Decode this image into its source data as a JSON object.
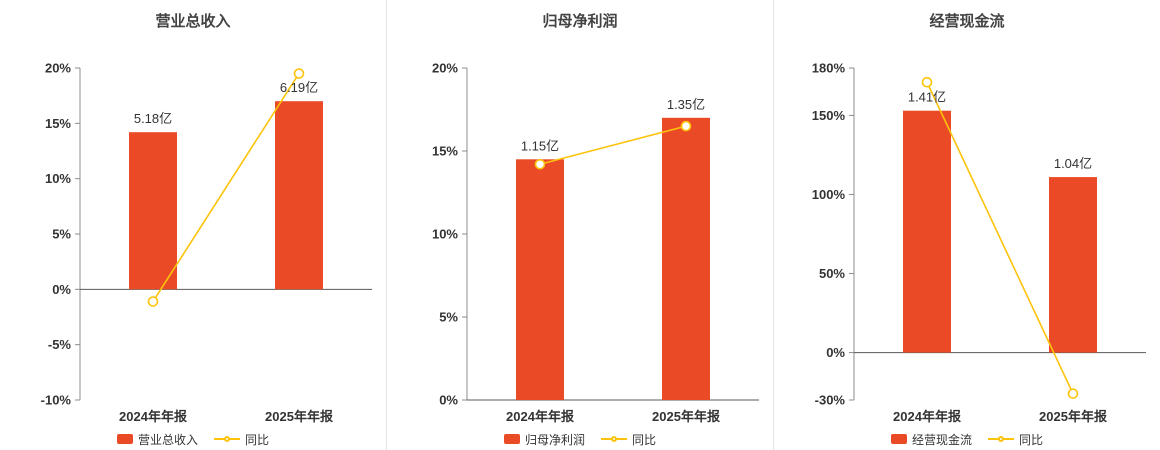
{
  "colors": {
    "bar": "#ea4b26",
    "line": "#fdc30b",
    "axis": "#8c8c8c",
    "zero_line": "#595959",
    "text": "#333333",
    "divider": "#e3e3e3"
  },
  "chart_data": [
    {
      "type": "bar+line",
      "title": "营业总收入",
      "categories": [
        "2024年年报",
        "2025年年报"
      ],
      "bars": {
        "name": "营业总收入",
        "unit": "亿",
        "values": [
          5.18,
          6.19
        ],
        "labels": [
          "5.18亿",
          "6.19亿"
        ],
        "top_on_axis_pct": [
          14.2,
          17.0
        ]
      },
      "line": {
        "name": "同比",
        "values_pct": [
          -1.1,
          19.5
        ]
      },
      "ylim": [
        -10,
        20
      ],
      "yticks": [
        -10,
        -5,
        0,
        5,
        10,
        15,
        20
      ],
      "ytick_suffix": "%",
      "grid": "off",
      "legend_position": "bottom",
      "legend": {
        "bar": "营业总收入",
        "line": "同比"
      }
    },
    {
      "type": "bar+line",
      "title": "归母净利润",
      "categories": [
        "2024年年报",
        "2025年年报"
      ],
      "bars": {
        "name": "归母净利润",
        "unit": "亿",
        "values": [
          1.15,
          1.35
        ],
        "labels": [
          "1.15亿",
          "1.35亿"
        ],
        "top_on_axis_pct": [
          14.5,
          17.0
        ]
      },
      "line": {
        "name": "同比",
        "values_pct": [
          14.2,
          16.5
        ]
      },
      "ylim": [
        0,
        20
      ],
      "yticks": [
        0,
        5,
        10,
        15,
        20
      ],
      "ytick_suffix": "%",
      "grid": "off",
      "legend_position": "bottom",
      "legend": {
        "bar": "归母净利润",
        "line": "同比"
      }
    },
    {
      "type": "bar+line",
      "title": "经营现金流",
      "categories": [
        "2024年年报",
        "2025年年报"
      ],
      "bars": {
        "name": "经营现金流",
        "unit": "亿",
        "values": [
          1.41,
          1.04
        ],
        "labels": [
          "1.41亿",
          "1.04亿"
        ],
        "top_on_axis_pct": [
          153,
          111
        ]
      },
      "line": {
        "name": "同比",
        "values_pct": [
          171,
          -26
        ]
      },
      "ylim": [
        -30,
        180
      ],
      "yticks": [
        -30,
        0,
        50,
        100,
        150,
        180
      ],
      "ytick_suffix": "%",
      "grid": "off",
      "legend_position": "bottom",
      "legend": {
        "bar": "经营现金流",
        "line": "同比"
      }
    }
  ]
}
